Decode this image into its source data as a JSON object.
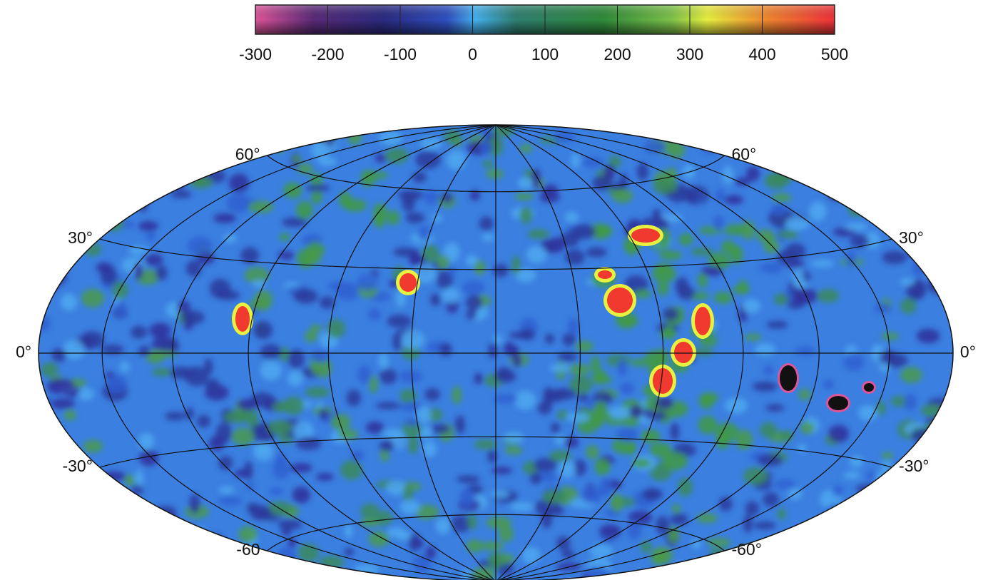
{
  "colorbar": {
    "lim": [
      -300,
      500
    ],
    "ticks": [
      -300,
      -200,
      -100,
      0,
      100,
      200,
      300,
      400,
      500
    ]
  },
  "graticule": {
    "left_labels": [
      {
        "value": 60,
        "label": "60°"
      },
      {
        "value": 30,
        "label": "30°"
      },
      {
        "value": 0,
        "label": "0°"
      },
      {
        "value": -30,
        "label": "-30°"
      },
      {
        "value": -60,
        "label": "-60"
      }
    ],
    "right_labels": [
      {
        "value": 60,
        "label": "60°"
      },
      {
        "value": 30,
        "label": "30°"
      },
      {
        "value": 0,
        "label": "0°"
      },
      {
        "value": -30,
        "label": "-30°"
      },
      {
        "value": -60,
        "label": "-60°"
      }
    ]
  }
}
